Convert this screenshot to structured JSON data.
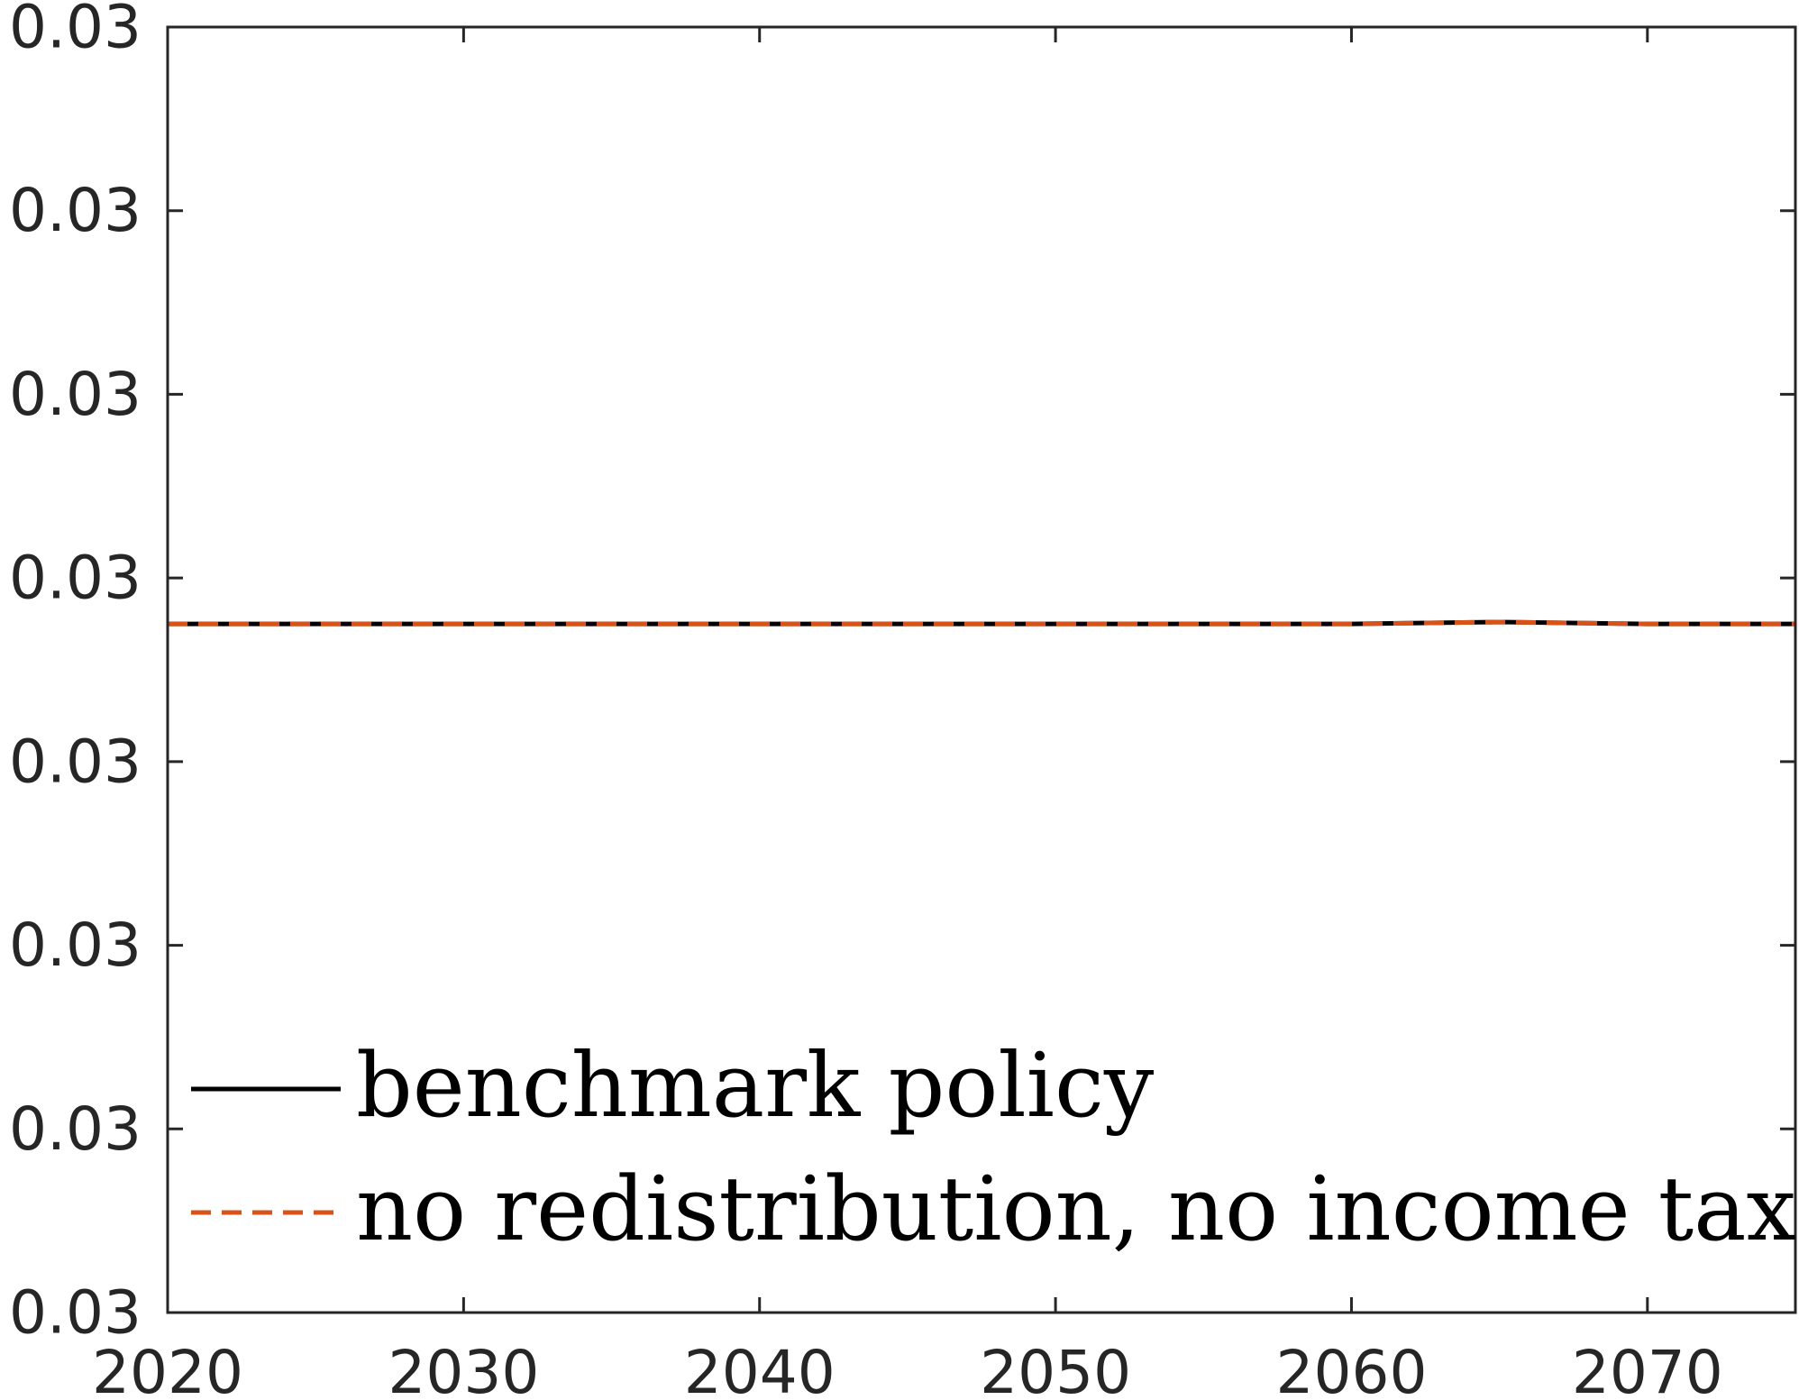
{
  "chart_data": {
    "type": "line",
    "title": "",
    "xlabel": "",
    "ylabel": "",
    "xlim": [
      2020,
      2075
    ],
    "ylim": [
      0,
      7
    ],
    "x_ticks": [
      2020,
      2030,
      2040,
      2050,
      2060,
      2070
    ],
    "x_tick_labels": [
      "2020",
      "2030",
      "2040",
      "2050",
      "2060",
      "2070"
    ],
    "y_ticks": [
      0,
      1,
      2,
      3,
      4,
      5,
      6,
      7
    ],
    "y_tick_labels": [
      "0.03",
      "0.03",
      "0.03",
      "0.03",
      "0.03",
      "0.03",
      "0.03",
      "0.03"
    ],
    "grid": false,
    "legend_position": "bottom-left",
    "x": [
      2020,
      2025,
      2030,
      2035,
      2040,
      2045,
      2050,
      2055,
      2060,
      2065,
      2070,
      2075
    ],
    "series": [
      {
        "name": "benchmark policy",
        "color": "#000000",
        "style": "solid",
        "values": [
          3.75,
          3.75,
          3.75,
          3.75,
          3.75,
          3.75,
          3.75,
          3.75,
          3.75,
          3.76,
          3.75,
          3.75
        ]
      },
      {
        "name": "no redistribution, no income tax",
        "color": "#D95319",
        "style": "dashed",
        "values": [
          3.75,
          3.75,
          3.75,
          3.75,
          3.75,
          3.75,
          3.75,
          3.75,
          3.75,
          3.76,
          3.75,
          3.75
        ]
      }
    ]
  }
}
